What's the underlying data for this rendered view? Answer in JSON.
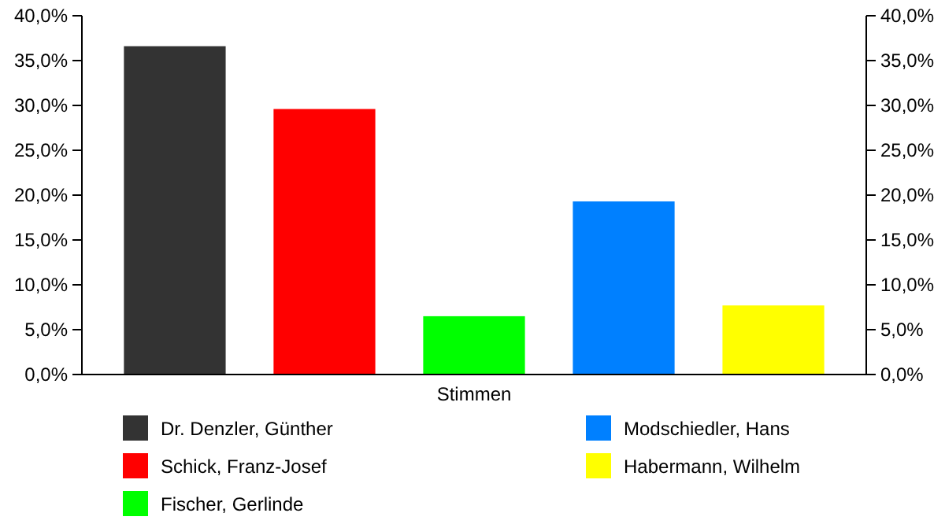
{
  "chart_data": {
    "type": "bar",
    "categories": [
      "Stimmen"
    ],
    "series": [
      {
        "name": "Dr. Denzler, Günther",
        "color": "#333333",
        "values": [
          36.6
        ]
      },
      {
        "name": "Schick, Franz-Josef",
        "color": "#ff0000",
        "values": [
          29.6
        ]
      },
      {
        "name": "Fischer, Gerlinde",
        "color": "#00ff00",
        "values": [
          6.5
        ]
      },
      {
        "name": "Modschiedler, Hans",
        "color": "#0080ff",
        "values": [
          19.3
        ]
      },
      {
        "name": "Habermann, Wilhelm",
        "color": "#ffff00",
        "values": [
          7.7
        ]
      }
    ],
    "ylim": [
      0,
      40
    ],
    "yticks": [
      {
        "value": 0,
        "label": "0,0%"
      },
      {
        "value": 5,
        "label": "5,0%"
      },
      {
        "value": 10,
        "label": "10,0%"
      },
      {
        "value": 15,
        "label": "15,0%"
      },
      {
        "value": 20,
        "label": "20,0%"
      },
      {
        "value": 25,
        "label": "25,0%"
      },
      {
        "value": 30,
        "label": "30,0%"
      },
      {
        "value": 35,
        "label": "35,0%"
      },
      {
        "value": 40,
        "label": "40,0%"
      }
    ],
    "grid": false,
    "legend": "bottom"
  }
}
